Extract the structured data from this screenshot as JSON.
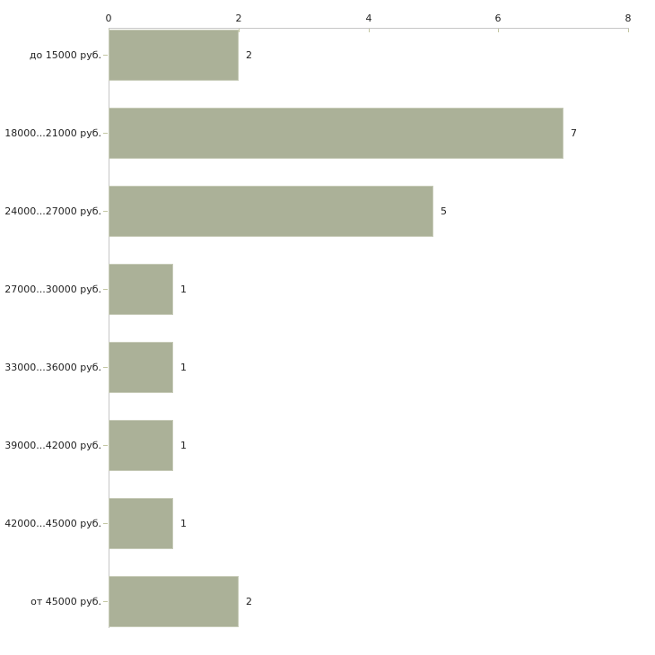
{
  "chart_data": {
    "type": "bar",
    "orientation": "horizontal",
    "title": "",
    "xlabel": "",
    "ylabel": "",
    "categories": [
      "до 15000 руб.",
      "18000...21000 руб.",
      "24000...27000 руб.",
      "27000...30000 руб.",
      "33000...36000 руб.",
      "39000...42000 руб.",
      "42000...45000 руб.",
      "от 45000 руб."
    ],
    "values": [
      2,
      7,
      5,
      1,
      1,
      1,
      1,
      2
    ],
    "value_labels": [
      "2",
      "7",
      "5",
      "1",
      "1",
      "1",
      "1",
      "2"
    ],
    "x_ticks": [
      0,
      2,
      4,
      6,
      8
    ],
    "xlim": [
      0,
      8
    ],
    "grid": false,
    "legend": "none",
    "axis_position": "top",
    "colors": {
      "bar_fill": "#abb198",
      "bar_border": "#c7cbb8",
      "axis_line": "#c6c6c6",
      "tick_mark": "#c3c6a2",
      "text": "#1f1f1f",
      "background": "#ffffff"
    }
  }
}
